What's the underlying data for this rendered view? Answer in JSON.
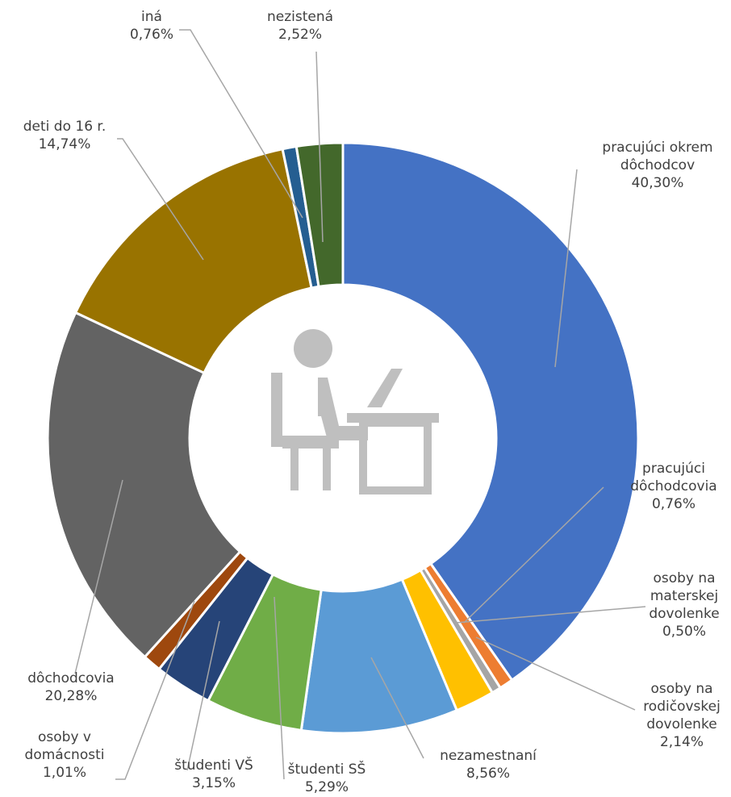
{
  "chart_data": {
    "type": "donut",
    "categories": [
      "pracujúci okrem dôchodcov",
      "pracujúci dôchodcovia",
      "osoby na materskej dovolenke",
      "osoby na rodičovskej dovolenke",
      "nezamestnaní",
      "študenti SŠ",
      "študenti VŠ",
      "osoby v domácnosti",
      "dôchodcovia",
      "deti do 16 r.",
      "iná",
      "nezistená"
    ],
    "values": [
      40.3,
      0.76,
      0.5,
      2.14,
      8.56,
      5.29,
      3.15,
      1.01,
      20.28,
      14.74,
      0.76,
      2.52
    ],
    "value_labels": [
      "40,30%",
      "0,76%",
      "0,50%",
      "2,14%",
      "8,56%",
      "5,29%",
      "3,15%",
      "1,01%",
      "20,28%",
      "14,74%",
      "0,76%",
      "2,52%"
    ],
    "colors": [
      "#4472c4",
      "#ed7d31",
      "#a5a5a5",
      "#ffc000",
      "#5b9bd5",
      "#70ad47",
      "#264478",
      "#9e480e",
      "#636363",
      "#997300",
      "#255e91",
      "#43682b"
    ]
  }
}
